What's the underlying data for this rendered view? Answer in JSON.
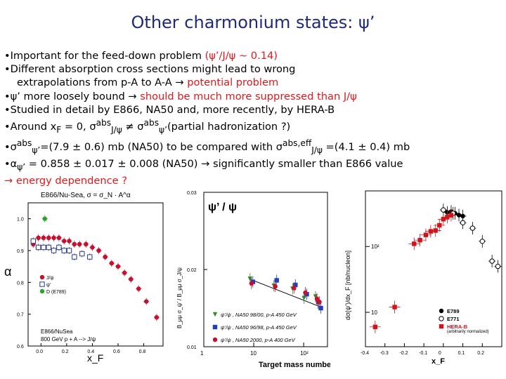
{
  "title": "Other charmonium states: ψ’",
  "bullets": {
    "b1_pre": "•Important for the feed-down problem ",
    "b1_red": "(ψ’/J/ψ ~ 0.14)",
    "b2": "•Different absorption cross sections might lead to wrong",
    "b3_pre": "extrapolations from p-A to A-A → ",
    "b3_red": "potential problem",
    "b4_pre": "•ψ’ more loosely bound → ",
    "b4_red": "should be much more suppressed than J/ψ",
    "b5": "•Studied in detail by E866, NA50 and, more recently, by HERA-B",
    "b6": "•Around x",
    "b6_sub": "F",
    "b6_rest": " = 0, σ",
    "b6_sup1": "abs",
    "b6_sub1": "J/ψ",
    "b6_mid": " ≠ σ",
    "b6_sup2": "abs",
    "b6_sub2": "ψ’",
    "b6_end": "(partial hadronization ?)",
    "b7_pre": "•σ",
    "b7_sup1": "abs",
    "b7_sub1": "ψ’",
    "b7_mid": "=(7.9 ± 0.6) mb (NA50) to be compared with σ",
    "b7_sup2": "abs,eff",
    "b7_sub2": "J/ψ",
    "b7_end": " =(4.1 ± 0.4) mb",
    "b8_pre": "•α",
    "b8_sub": "ψ’",
    "b8_end": " = 0.858 ± 0.017 ± 0.008 (NA50) → significantly smaller than E866 value",
    "b9_red": "→ energy dependence ?"
  },
  "chart_data": [
    {
      "type": "scatter",
      "title": "E866/Nu-Sea, σ = σ_N · A^α",
      "xlabel": "x_F",
      "ylabel": "α",
      "xlim": [
        -0.1,
        0.95
      ],
      "ylim": [
        0.6,
        1.05
      ],
      "xticks": [
        "0.0",
        "0.2",
        "0.4",
        "0.6",
        "0.8"
      ],
      "yticks": [
        "0.6",
        "0.7",
        "0.8",
        "0.9",
        "1.0"
      ],
      "annotations": [
        "E866/NuSea",
        "800 GeV p + A --> J/ψ"
      ],
      "series": [
        {
          "name": "J/ψ",
          "color": "#c8102e",
          "marker": "circle",
          "x": [
            -0.06,
            -0.02,
            0.02,
            0.06,
            0.1,
            0.14,
            0.18,
            0.22,
            0.26,
            0.3,
            0.35,
            0.4,
            0.45,
            0.5,
            0.55,
            0.6,
            0.65,
            0.7,
            0.76,
            0.82,
            0.9
          ],
          "y": [
            0.92,
            0.94,
            0.94,
            0.94,
            0.94,
            0.94,
            0.93,
            0.93,
            0.92,
            0.92,
            0.92,
            0.91,
            0.9,
            0.88,
            0.86,
            0.85,
            0.83,
            0.81,
            0.78,
            0.74,
            0.69
          ]
        },
        {
          "name": "ψ’",
          "color": "#2e3b8f",
          "marker": "square-open",
          "x": [
            -0.06,
            -0.02,
            0.02,
            0.06,
            0.1,
            0.14,
            0.18,
            0.22,
            0.26,
            0.32,
            0.38
          ],
          "y": [
            0.93,
            0.91,
            0.91,
            0.91,
            0.9,
            0.91,
            0.9,
            0.9,
            0.88,
            0.89,
            0.88
          ]
        },
        {
          "name": "D (E789)",
          "color": "#2ca02c",
          "marker": "circle",
          "x": [
            0.03
          ],
          "y": [
            1.0
          ]
        }
      ]
    },
    {
      "type": "scatter",
      "title": "ψ’ / ψ",
      "xlabel": "Target mass number",
      "ylabel": "B_μμ σ_ψ’ / B_μμ σ_J/ψ",
      "xscale": "log",
      "xlim": [
        1,
        300
      ],
      "ylim": [
        0.01,
        0.03
      ],
      "xticks": [
        "1",
        "10",
        "10²"
      ],
      "yticks": [
        "0.01",
        "0.02",
        "0.03"
      ],
      "series": [
        {
          "name": "ψ’/ψ , NA50 98/00, p-A 450 GeV",
          "color": "#2e8b2e",
          "marker": "triangle-down",
          "x": [
            9,
            27,
            64,
            108,
            184,
            207
          ],
          "y": [
            0.0188,
            0.0179,
            0.0175,
            0.0163,
            0.0165,
            0.0156
          ]
        },
        {
          "name": "ψ’/ψ , NA50 96/98, p-A 450 GeV",
          "color": "#1f3fbf",
          "marker": "square",
          "x": [
            9,
            27,
            64,
            108,
            184,
            207
          ],
          "y": [
            0.0184,
            0.0186,
            0.018,
            0.0168,
            0.0158,
            0.015
          ]
        },
        {
          "name": "ψ’/ψ , NA50 2000, p-A 400 GeV",
          "color": "#c8102e",
          "marker": "circle",
          "x": [
            9,
            27,
            64,
            108,
            184,
            207
          ],
          "y": [
            0.0182,
            0.0178,
            0.0176,
            0.017,
            0.0162,
            0.0158
          ]
        }
      ],
      "fit": {
        "x": [
          8,
          210
        ],
        "y": [
          0.0188,
          0.0152
        ]
      }
    },
    {
      "type": "scatter",
      "xlabel": "x_F",
      "ylabel": "dσ(ψ’)/dx_F [nb/nucleon]",
      "yscale": "log",
      "xlim": [
        -0.4,
        0.3
      ],
      "xticks": [
        "-0.4",
        "-0.3",
        "-0.2",
        "-0.1",
        "0",
        "0.1",
        "0.2"
      ],
      "yticks": [
        "10",
        "10²"
      ],
      "series": [
        {
          "name": "E789",
          "color": "#000000",
          "marker": "circle",
          "x": [
            0.02,
            0.04,
            0.06,
            0.08,
            0.1
          ],
          "y": [
            330,
            340,
            320,
            300,
            290
          ]
        },
        {
          "name": "E771",
          "color": "#000000",
          "marker": "circle-open",
          "x": [
            0.0,
            0.05,
            0.1,
            0.15,
            0.2,
            0.25,
            0.28
          ],
          "y": [
            360,
            320,
            230,
            190,
            120,
            60,
            50
          ]
        },
        {
          "name": "HERA-B",
          "note": "(arbitrarily normalized)",
          "color": "#d0141c",
          "marker": "square",
          "x": [
            -0.35,
            -0.25,
            -0.15,
            -0.12,
            -0.09,
            -0.065,
            -0.04,
            -0.02,
            0.0,
            0.02,
            0.04
          ],
          "y": [
            6,
            12,
            110,
            125,
            150,
            170,
            175,
            210,
            260,
            280,
            300
          ]
        }
      ]
    }
  ]
}
